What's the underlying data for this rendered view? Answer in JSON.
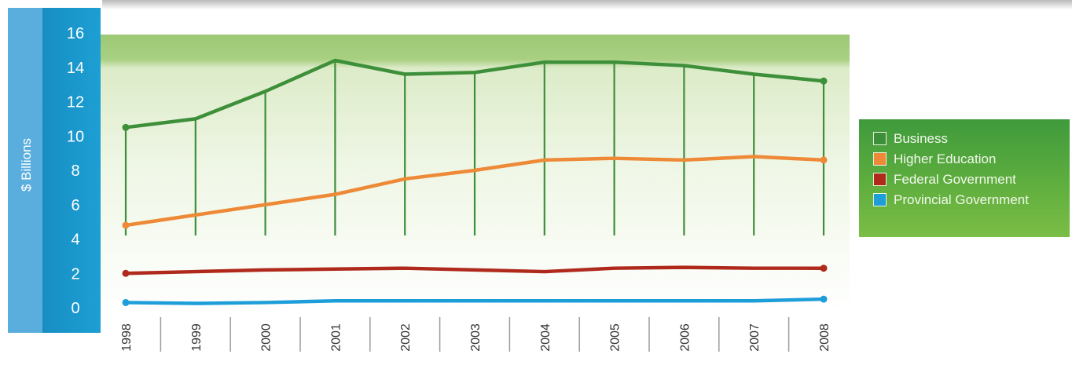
{
  "chart_data": {
    "type": "line",
    "title": "",
    "xlabel": "",
    "ylabel": "$ Billions",
    "ylim": [
      0,
      16
    ],
    "y_ticks": [
      "0",
      "2",
      "4",
      "6",
      "8",
      "10",
      "12",
      "14",
      "16"
    ],
    "categories": [
      "1998",
      "1999",
      "2000",
      "2001",
      "2002",
      "2003",
      "2004",
      "2005",
      "2006",
      "2007",
      "2008"
    ],
    "grid": false,
    "legend_position": "right",
    "series": [
      {
        "name": "Business",
        "color": "#3e8f3a",
        "values": [
          10.5,
          11.0,
          12.6,
          14.4,
          13.6,
          13.7,
          14.3,
          14.3,
          14.1,
          13.6,
          13.2
        ]
      },
      {
        "name": "Higher Education",
        "color": "#ee8a37",
        "values": [
          4.8,
          5.4,
          6.0,
          6.6,
          7.5,
          8.0,
          8.6,
          8.7,
          8.6,
          8.8,
          8.6
        ]
      },
      {
        "name": "Federal Government",
        "color": "#b02a1c",
        "values": [
          2.0,
          2.1,
          2.2,
          2.25,
          2.3,
          2.2,
          2.1,
          2.3,
          2.35,
          2.3,
          2.3
        ]
      },
      {
        "name": "Provincial Government",
        "color": "#1e9ed9",
        "values": [
          0.3,
          0.25,
          0.3,
          0.4,
          0.4,
          0.4,
          0.4,
          0.4,
          0.4,
          0.4,
          0.5
        ]
      }
    ]
  }
}
